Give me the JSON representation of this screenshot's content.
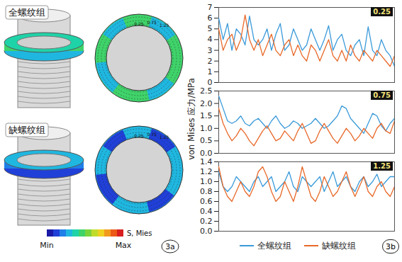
{
  "panel_a": {
    "groups": [
      "全螺纹组",
      "缺螺纹组"
    ],
    "ring_labels": [
      "0.25",
      "0.75",
      "1.25"
    ],
    "colorbar": {
      "title": "S, Mies",
      "min_label": "Min",
      "max_label": "Max"
    },
    "panel_letter": "3a"
  },
  "shared": {
    "y_label": "von Mises 应力/MPa",
    "legend": "bottom",
    "panel_letter": "3b"
  },
  "chart_data": [
    {
      "type": "line",
      "title": "0.25",
      "x": [
        0,
        1,
        2,
        3,
        4,
        5,
        6,
        7,
        8,
        9,
        10,
        11,
        12,
        13,
        14,
        15,
        16,
        17,
        18,
        19,
        20,
        21,
        22,
        23,
        24,
        25,
        26,
        27,
        28,
        29,
        30,
        31,
        32,
        33,
        34,
        35,
        36,
        37,
        38,
        39,
        40
      ],
      "xlim": [
        0,
        40
      ],
      "ylim": [
        0,
        7
      ],
      "yticks": [
        0,
        1,
        2,
        3,
        4,
        5,
        6,
        7
      ],
      "tick_labels": "y",
      "series": [
        {
          "name": "全螺纹组",
          "color": "#3a9ad9",
          "values": [
            6.0,
            4.0,
            5.5,
            3.0,
            5.0,
            4.5,
            3.5,
            6.2,
            4.0,
            3.5,
            4.0,
            5.0,
            3.0,
            4.5,
            5.5,
            3.0,
            3.5,
            5.0,
            4.0,
            3.0,
            3.5,
            5.0,
            4.0,
            3.0,
            4.0,
            5.3,
            3.0,
            4.0,
            4.5,
            3.0,
            2.5,
            3.5,
            4.0,
            2.5,
            5.2,
            3.0,
            2.5,
            4.0,
            3.0,
            2.5,
            1.5
          ]
        },
        {
          "name": "缺螺纹组",
          "color": "#e8692a",
          "values": [
            5.0,
            3.0,
            4.0,
            4.5,
            3.0,
            4.0,
            6.3,
            4.0,
            3.0,
            4.0,
            2.5,
            3.5,
            4.5,
            3.0,
            2.5,
            3.5,
            4.0,
            2.5,
            3.5,
            2.5,
            2.0,
            3.5,
            3.0,
            2.0,
            3.0,
            4.0,
            2.5,
            2.0,
            3.0,
            2.0,
            3.5,
            2.5,
            2.0,
            3.0,
            2.5,
            2.0,
            3.0,
            2.5,
            2.0,
            1.5,
            2.5
          ]
        }
      ]
    },
    {
      "type": "line",
      "title": "0.75",
      "x": [
        0,
        1,
        2,
        3,
        4,
        5,
        6,
        7,
        8,
        9,
        10,
        11,
        12,
        13,
        14,
        15,
        16,
        17,
        18,
        19,
        20,
        21,
        22,
        23,
        24,
        25,
        26,
        27,
        28,
        29,
        30,
        31,
        32,
        33,
        34,
        35,
        36,
        37,
        38,
        39,
        40
      ],
      "xlim": [
        0,
        40
      ],
      "ylim": [
        0,
        2.5
      ],
      "yticks": [
        {
          "value": 0,
          "label": "0.0"
        },
        0.5,
        {
          "value": 1,
          "label": "1.0"
        },
        1.5,
        {
          "value": 2,
          "label": "2.0"
        },
        2.5
      ],
      "tick_labels": "y",
      "series": [
        {
          "name": "全螺纹组",
          "color": "#3a9ad9",
          "values": [
            2.3,
            1.8,
            1.3,
            1.2,
            1.3,
            1.5,
            1.2,
            1.1,
            1.3,
            1.4,
            1.2,
            1.0,
            1.3,
            1.5,
            1.2,
            1.0,
            1.1,
            1.3,
            1.2,
            1.0,
            1.1,
            1.2,
            1.4,
            1.2,
            1.0,
            1.1,
            1.3,
            1.5,
            1.9,
            1.8,
            1.4,
            1.2,
            1.0,
            0.8,
            1.2,
            1.6,
            1.5,
            1.1,
            0.9,
            1.2,
            1.4
          ]
        },
        {
          "name": "缺螺纹组",
          "color": "#e8692a",
          "values": [
            1.8,
            1.2,
            0.8,
            0.5,
            0.7,
            1.0,
            0.8,
            0.5,
            0.3,
            0.6,
            0.9,
            1.1,
            0.8,
            0.5,
            0.6,
            0.9,
            0.7,
            0.5,
            0.9,
            1.2,
            0.8,
            0.4,
            0.5,
            0.9,
            1.2,
            0.9,
            0.6,
            0.4,
            0.7,
            1.0,
            0.8,
            0.5,
            0.7,
            1.0,
            0.8,
            0.6,
            1.0,
            1.2,
            0.9,
            0.8,
            1.3
          ]
        }
      ]
    },
    {
      "type": "line",
      "title": "1.25",
      "x": [
        0,
        1,
        2,
        3,
        4,
        5,
        6,
        7,
        8,
        9,
        10,
        11,
        12,
        13,
        14,
        15,
        16,
        17,
        18,
        19,
        20,
        21,
        22,
        23,
        24,
        25,
        26,
        27,
        28,
        29,
        30,
        31,
        32,
        33,
        34,
        35,
        36,
        37,
        38,
        39,
        40
      ],
      "xlim": [
        0,
        40
      ],
      "ylim": [
        0,
        1.4
      ],
      "yticks": [
        {
          "value": 0,
          "label": "0.0"
        },
        0.2,
        0.4,
        0.6,
        0.8,
        {
          "value": 1,
          "label": "1.0"
        },
        1.2,
        1.4
      ],
      "tick_labels": "y",
      "series": [
        {
          "name": "全螺纹组",
          "color": "#3a9ad9",
          "values": [
            1.2,
            0.9,
            0.8,
            0.9,
            1.1,
            1.0,
            0.9,
            0.8,
            1.0,
            1.1,
            0.9,
            1.0,
            1.1,
            0.8,
            0.9,
            1.0,
            1.2,
            0.9,
            0.8,
            1.1,
            1.0,
            0.9,
            1.0,
            1.1,
            0.8,
            1.0,
            1.2,
            0.9,
            1.0,
            1.1,
            0.9,
            0.8,
            1.0,
            1.1,
            0.9,
            1.0,
            1.15,
            0.9,
            1.0,
            1.1,
            1.1
          ]
        },
        {
          "name": "缺螺纹组",
          "color": "#e8692a",
          "values": [
            1.3,
            0.9,
            0.7,
            0.6,
            0.8,
            1.0,
            0.8,
            0.7,
            0.9,
            1.2,
            1.3,
            1.1,
            0.8,
            0.6,
            0.7,
            1.0,
            0.8,
            0.6,
            0.9,
            1.3,
            1.0,
            0.7,
            0.6,
            0.8,
            1.1,
            0.9,
            0.7,
            0.8,
            1.0,
            1.2,
            0.9,
            0.7,
            0.9,
            1.1,
            0.8,
            0.7,
            0.9,
            1.0,
            0.8,
            0.7,
            0.9
          ]
        }
      ]
    }
  ]
}
